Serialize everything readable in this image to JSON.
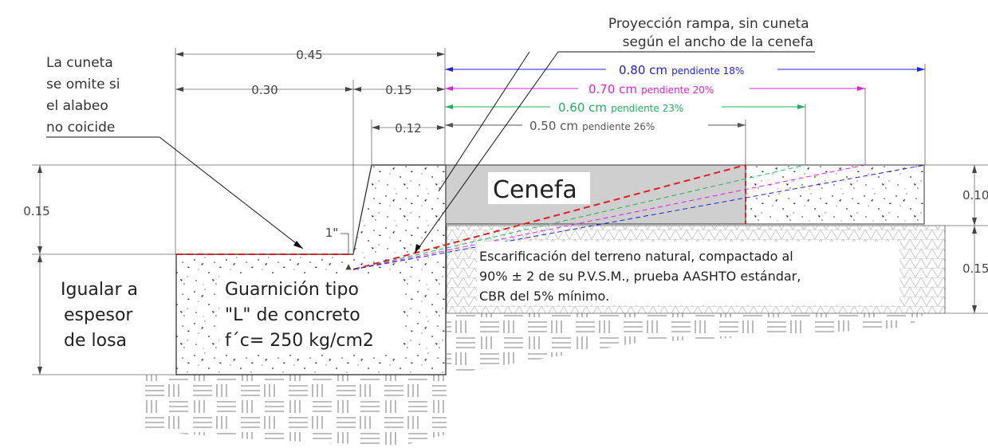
{
  "colors": {
    "blue": "#2020e0",
    "magenta": "#e020e0",
    "green": "#20b060",
    "gray": "#555555",
    "red": "#e02020",
    "cenefa_fill": "#cfcfcf"
  },
  "notes": {
    "cuneta": [
      "La cuneta",
      "se omite si",
      "el alabeo",
      "no coicide"
    ],
    "projection": [
      "Proyección rampa, sin cuneta",
      "según el ancho de la cenefa"
    ],
    "igualar": [
      "Igualar a",
      "espesor",
      "de losa"
    ],
    "guarnicion": [
      "Guarnición tipo",
      "\"L\" de concreto",
      "f´c= 250 kg/cm2"
    ],
    "cenefa": "Cenefa",
    "escarificacion": [
      "Escarificación del terreno natural, compactado al",
      "90% ± 2 de su P.V.S.M., prueba AASHTO estándar,",
      "CBR del 5% mínimo."
    ]
  },
  "dimensions": {
    "d045": "0.45",
    "d030": "0.30",
    "d015_top": "0.15",
    "d012": "0.12",
    "d1in": "1\"",
    "left_015": "0.15",
    "right_010": "0.10",
    "right_015": "0.15"
  },
  "ramps": [
    {
      "width": "0.80 cm",
      "slope": "pendiente 18%"
    },
    {
      "width": "0.70 cm",
      "slope": "pendiente 20%"
    },
    {
      "width": "0.60 cm",
      "slope": "pendiente 23%"
    },
    {
      "width": "0.50 cm",
      "slope": "pendiente 26%"
    }
  ]
}
